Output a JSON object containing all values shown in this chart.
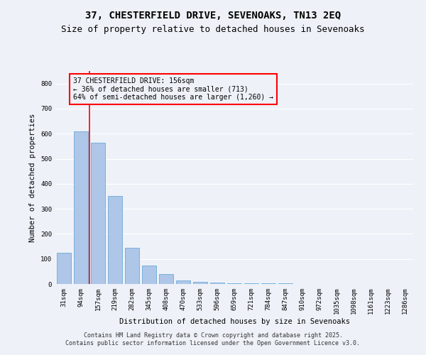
{
  "title_line1": "37, CHESTERFIELD DRIVE, SEVENOAKS, TN13 2EQ",
  "title_line2": "Size of property relative to detached houses in Sevenoaks",
  "xlabel": "Distribution of detached houses by size in Sevenoaks",
  "ylabel": "Number of detached properties",
  "categories": [
    "31sqm",
    "94sqm",
    "157sqm",
    "219sqm",
    "282sqm",
    "345sqm",
    "408sqm",
    "470sqm",
    "533sqm",
    "596sqm",
    "659sqm",
    "721sqm",
    "784sqm",
    "847sqm",
    "910sqm",
    "972sqm",
    "1035sqm",
    "1098sqm",
    "1161sqm",
    "1223sqm",
    "1286sqm"
  ],
  "values": [
    125,
    610,
    565,
    350,
    145,
    75,
    40,
    15,
    8,
    5,
    4,
    3,
    2,
    2,
    1,
    1,
    1,
    0,
    0,
    0,
    0
  ],
  "bar_color": "#aec6e8",
  "bar_edge_color": "#5a9fd4",
  "vline_x_index": 2,
  "vline_color": "red",
  "annotation_text": "37 CHESTERFIELD DRIVE: 156sqm\n← 36% of detached houses are smaller (713)\n64% of semi-detached houses are larger (1,260) →",
  "annotation_box_color": "red",
  "ylim": [
    0,
    850
  ],
  "yticks": [
    0,
    100,
    200,
    300,
    400,
    500,
    600,
    700,
    800
  ],
  "footer_line1": "Contains HM Land Registry data © Crown copyright and database right 2025.",
  "footer_line2": "Contains public sector information licensed under the Open Government Licence v3.0.",
  "bg_color": "#eef2f8",
  "grid_color": "#ffffff",
  "title_fontsize": 10,
  "subtitle_fontsize": 9,
  "label_fontsize": 7.5,
  "tick_fontsize": 6.5,
  "footer_fontsize": 6,
  "annotation_fontsize": 7
}
